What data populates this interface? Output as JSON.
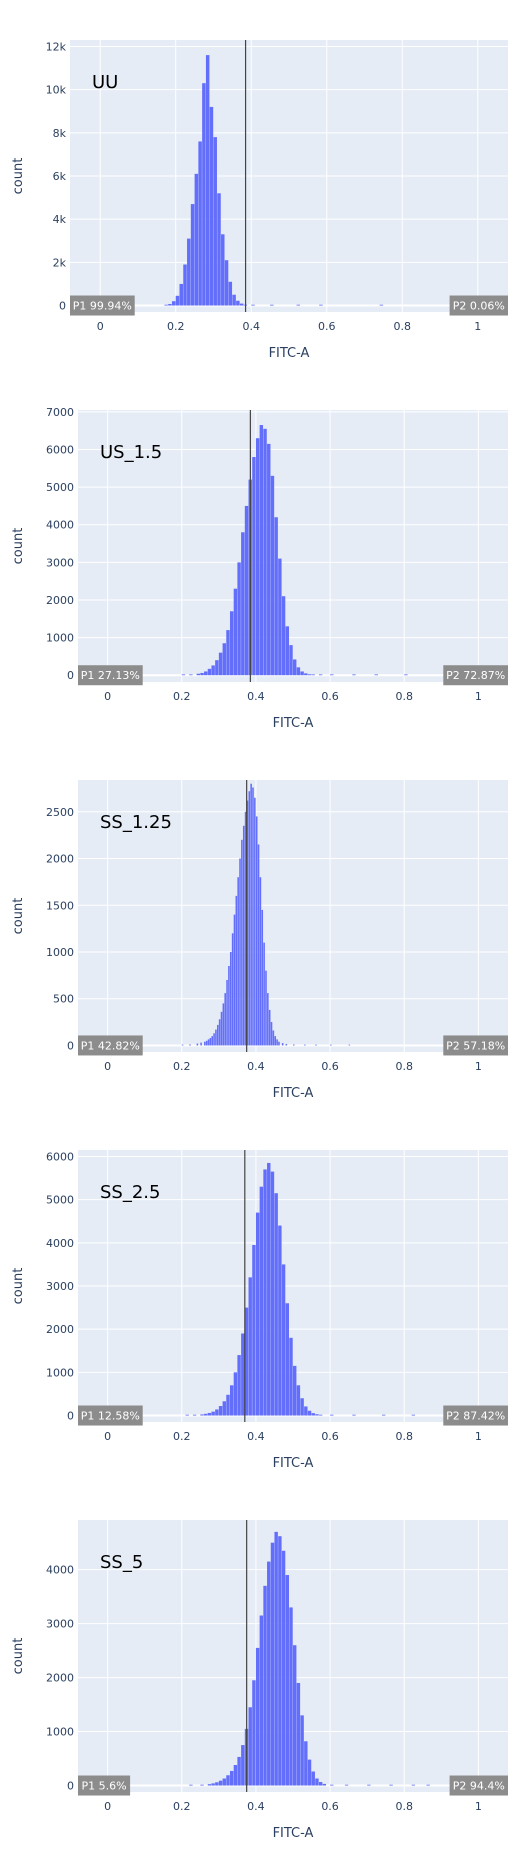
{
  "colors": {
    "plot_bg": "#e5ecf6",
    "bar": "#636efa",
    "gate": "#444444",
    "gate_label_bg": "#8c8c8c",
    "grid": "#ffffff"
  },
  "chart_data": [
    {
      "type": "bar",
      "title": "UU",
      "xlabel": "FITC-A",
      "ylabel": "count",
      "xlim": [
        -0.08,
        1.08
      ],
      "ylim": [
        -300,
        12300
      ],
      "yticks": [
        0,
        2000,
        4000,
        6000,
        8000,
        10000,
        12000
      ],
      "ytick_labels": [
        "0",
        "2k",
        "4k",
        "6k",
        "8k",
        "10k",
        "12k"
      ],
      "xticks": [
        0,
        0.2,
        0.4,
        0.6,
        0.8,
        1
      ],
      "xtick_labels": [
        "0",
        "0.2",
        "0.4",
        "0.6",
        "0.8",
        "1"
      ],
      "gate": 0.385,
      "gate_labels": [
        "P1 99.94%",
        "P2 0.06%"
      ],
      "bin_width": 0.01,
      "bins": [
        [
          0.17,
          20
        ],
        [
          0.18,
          70
        ],
        [
          0.19,
          200
        ],
        [
          0.2,
          450
        ],
        [
          0.21,
          1000
        ],
        [
          0.22,
          1900
        ],
        [
          0.23,
          3100
        ],
        [
          0.24,
          4700
        ],
        [
          0.25,
          6100
        ],
        [
          0.26,
          7600
        ],
        [
          0.27,
          10300
        ],
        [
          0.28,
          11600
        ],
        [
          0.29,
          9200
        ],
        [
          0.3,
          7800
        ],
        [
          0.31,
          5200
        ],
        [
          0.32,
          3300
        ],
        [
          0.33,
          2100
        ],
        [
          0.34,
          1100
        ],
        [
          0.35,
          500
        ],
        [
          0.36,
          220
        ],
        [
          0.37,
          90
        ],
        [
          0.38,
          30
        ],
        [
          0.4,
          10
        ],
        [
          0.45,
          10
        ],
        [
          0.52,
          10
        ],
        [
          0.58,
          10
        ],
        [
          0.74,
          10
        ]
      ]
    },
    {
      "type": "bar",
      "title": "US_1.5",
      "xlabel": "FITC-A",
      "ylabel": "count",
      "xlim": [
        -0.08,
        1.08
      ],
      "ylim": [
        -180,
        7050
      ],
      "yticks": [
        0,
        1000,
        2000,
        3000,
        4000,
        5000,
        6000,
        7000
      ],
      "ytick_labels": [
        "0",
        "1000",
        "2000",
        "3000",
        "4000",
        "5000",
        "6000",
        "7000"
      ],
      "xticks": [
        0,
        0.2,
        0.4,
        0.6,
        0.8,
        1
      ],
      "xtick_labels": [
        "0",
        "0.2",
        "0.4",
        "0.6",
        "0.8",
        "1"
      ],
      "gate": 0.385,
      "gate_labels": [
        "P1 27.13%",
        "P2 72.87%"
      ],
      "bin_width": 0.01,
      "bins": [
        [
          0.2,
          10
        ],
        [
          0.22,
          20
        ],
        [
          0.24,
          40
        ],
        [
          0.25,
          60
        ],
        [
          0.26,
          100
        ],
        [
          0.27,
          170
        ],
        [
          0.28,
          260
        ],
        [
          0.29,
          400
        ],
        [
          0.3,
          600
        ],
        [
          0.31,
          850
        ],
        [
          0.32,
          1200
        ],
        [
          0.33,
          1700
        ],
        [
          0.34,
          2300
        ],
        [
          0.35,
          3000
        ],
        [
          0.36,
          3800
        ],
        [
          0.37,
          4500
        ],
        [
          0.38,
          5200
        ],
        [
          0.39,
          5800
        ],
        [
          0.4,
          6300
        ],
        [
          0.41,
          6650
        ],
        [
          0.42,
          6550
        ],
        [
          0.43,
          6150
        ],
        [
          0.44,
          5300
        ],
        [
          0.45,
          4200
        ],
        [
          0.46,
          3100
        ],
        [
          0.47,
          2100
        ],
        [
          0.48,
          1300
        ],
        [
          0.49,
          800
        ],
        [
          0.5,
          420
        ],
        [
          0.51,
          210
        ],
        [
          0.52,
          100
        ],
        [
          0.53,
          50
        ],
        [
          0.54,
          25
        ],
        [
          0.55,
          15
        ],
        [
          0.57,
          10
        ],
        [
          0.6,
          10
        ],
        [
          0.66,
          10
        ],
        [
          0.72,
          10
        ],
        [
          0.8,
          10
        ]
      ]
    },
    {
      "type": "bar",
      "title": "SS_1.25",
      "xlabel": "FITC-A",
      "ylabel": "count",
      "xlim": [
        -0.08,
        1.08
      ],
      "ylim": [
        -70,
        2840
      ],
      "yticks": [
        0,
        500,
        1000,
        1500,
        2000,
        2500
      ],
      "ytick_labels": [
        "0",
        "500",
        "1000",
        "1500",
        "2000",
        "2500"
      ],
      "xticks": [
        0,
        0.2,
        0.4,
        0.6,
        0.8,
        1
      ],
      "xtick_labels": [
        "0",
        "0.2",
        "0.4",
        "0.6",
        "0.8",
        "1"
      ],
      "gate": 0.375,
      "gate_labels": [
        "P1 42.82%",
        "P2 57.18%"
      ],
      "bin_width": 0.005,
      "bins": [
        [
          0.2,
          5
        ],
        [
          0.22,
          10
        ],
        [
          0.24,
          20
        ],
        [
          0.25,
          30
        ],
        [
          0.26,
          40
        ],
        [
          0.265,
          50
        ],
        [
          0.27,
          65
        ],
        [
          0.275,
          80
        ],
        [
          0.28,
          100
        ],
        [
          0.285,
          130
        ],
        [
          0.29,
          170
        ],
        [
          0.295,
          220
        ],
        [
          0.3,
          280
        ],
        [
          0.305,
          360
        ],
        [
          0.31,
          450
        ],
        [
          0.315,
          560
        ],
        [
          0.32,
          700
        ],
        [
          0.325,
          850
        ],
        [
          0.33,
          1000
        ],
        [
          0.335,
          1200
        ],
        [
          0.34,
          1400
        ],
        [
          0.345,
          1600
        ],
        [
          0.35,
          1800
        ],
        [
          0.355,
          2000
        ],
        [
          0.36,
          2200
        ],
        [
          0.365,
          2350
        ],
        [
          0.37,
          2500
        ],
        [
          0.375,
          2620
        ],
        [
          0.38,
          2720
        ],
        [
          0.385,
          2800
        ],
        [
          0.39,
          2760
        ],
        [
          0.395,
          2650
        ],
        [
          0.4,
          2450
        ],
        [
          0.405,
          2150
        ],
        [
          0.41,
          1800
        ],
        [
          0.415,
          1450
        ],
        [
          0.42,
          1100
        ],
        [
          0.425,
          800
        ],
        [
          0.43,
          560
        ],
        [
          0.435,
          380
        ],
        [
          0.44,
          250
        ],
        [
          0.445,
          160
        ],
        [
          0.45,
          100
        ],
        [
          0.455,
          65
        ],
        [
          0.46,
          40
        ],
        [
          0.47,
          25
        ],
        [
          0.48,
          15
        ],
        [
          0.5,
          10
        ],
        [
          0.53,
          6
        ],
        [
          0.56,
          5
        ],
        [
          0.6,
          4
        ],
        [
          0.65,
          3
        ]
      ]
    },
    {
      "type": "bar",
      "title": "SS_2.5",
      "xlabel": "FITC-A",
      "ylabel": "count",
      "xlim": [
        -0.08,
        1.08
      ],
      "ylim": [
        -150,
        6150
      ],
      "yticks": [
        0,
        1000,
        2000,
        3000,
        4000,
        5000,
        6000
      ],
      "ytick_labels": [
        "0",
        "1000",
        "2000",
        "3000",
        "4000",
        "5000",
        "6000"
      ],
      "xticks": [
        0,
        0.2,
        0.4,
        0.6,
        0.8,
        1
      ],
      "xtick_labels": [
        "0",
        "0.2",
        "0.4",
        "0.6",
        "0.8",
        "1"
      ],
      "gate": 0.37,
      "gate_labels": [
        "P1 12.58%",
        "P2 87.42%"
      ],
      "bin_width": 0.01,
      "bins": [
        [
          0.21,
          10
        ],
        [
          0.23,
          15
        ],
        [
          0.25,
          25
        ],
        [
          0.26,
          40
        ],
        [
          0.27,
          60
        ],
        [
          0.28,
          90
        ],
        [
          0.29,
          140
        ],
        [
          0.3,
          220
        ],
        [
          0.31,
          330
        ],
        [
          0.32,
          480
        ],
        [
          0.33,
          700
        ],
        [
          0.34,
          1000
        ],
        [
          0.35,
          1400
        ],
        [
          0.36,
          1900
        ],
        [
          0.37,
          2500
        ],
        [
          0.38,
          3200
        ],
        [
          0.39,
          3950
        ],
        [
          0.4,
          4700
        ],
        [
          0.41,
          5300
        ],
        [
          0.42,
          5700
        ],
        [
          0.43,
          5850
        ],
        [
          0.44,
          5650
        ],
        [
          0.45,
          5150
        ],
        [
          0.46,
          4400
        ],
        [
          0.47,
          3500
        ],
        [
          0.48,
          2600
        ],
        [
          0.49,
          1800
        ],
        [
          0.5,
          1150
        ],
        [
          0.51,
          700
        ],
        [
          0.52,
          400
        ],
        [
          0.53,
          210
        ],
        [
          0.54,
          110
        ],
        [
          0.55,
          55
        ],
        [
          0.56,
          30
        ],
        [
          0.57,
          15
        ],
        [
          0.6,
          10
        ],
        [
          0.66,
          10
        ],
        [
          0.74,
          10
        ],
        [
          0.82,
          10
        ]
      ]
    },
    {
      "type": "bar",
      "title": "SS_5",
      "xlabel": "FITC-A",
      "ylabel": "count",
      "xlim": [
        -0.08,
        1.08
      ],
      "ylim": [
        -120,
        4920
      ],
      "yticks": [
        0,
        1000,
        2000,
        3000,
        4000
      ],
      "ytick_labels": [
        "0",
        "1000",
        "2000",
        "3000",
        "4000"
      ],
      "xticks": [
        0,
        0.2,
        0.4,
        0.6,
        0.8,
        1
      ],
      "xtick_labels": [
        "0",
        "0.2",
        "0.4",
        "0.6",
        "0.8",
        "1"
      ],
      "gate": 0.375,
      "gate_labels": [
        "P1 5.6%",
        "P2 94.4%"
      ],
      "bin_width": 0.01,
      "bins": [
        [
          0.22,
          10
        ],
        [
          0.25,
          15
        ],
        [
          0.27,
          25
        ],
        [
          0.28,
          40
        ],
        [
          0.29,
          60
        ],
        [
          0.3,
          90
        ],
        [
          0.31,
          130
        ],
        [
          0.32,
          190
        ],
        [
          0.33,
          270
        ],
        [
          0.34,
          380
        ],
        [
          0.35,
          530
        ],
        [
          0.36,
          750
        ],
        [
          0.37,
          1050
        ],
        [
          0.38,
          1450
        ],
        [
          0.39,
          1950
        ],
        [
          0.4,
          2550
        ],
        [
          0.41,
          3150
        ],
        [
          0.42,
          3700
        ],
        [
          0.43,
          4150
        ],
        [
          0.44,
          4500
        ],
        [
          0.45,
          4700
        ],
        [
          0.46,
          4620
        ],
        [
          0.47,
          4350
        ],
        [
          0.48,
          3900
        ],
        [
          0.49,
          3300
        ],
        [
          0.5,
          2600
        ],
        [
          0.51,
          1900
        ],
        [
          0.52,
          1300
        ],
        [
          0.53,
          820
        ],
        [
          0.54,
          480
        ],
        [
          0.55,
          260
        ],
        [
          0.56,
          130
        ],
        [
          0.57,
          65
        ],
        [
          0.58,
          30
        ],
        [
          0.6,
          15
        ],
        [
          0.64,
          10
        ],
        [
          0.7,
          10
        ],
        [
          0.76,
          10
        ],
        [
          0.82,
          10
        ],
        [
          0.86,
          10
        ]
      ]
    }
  ]
}
